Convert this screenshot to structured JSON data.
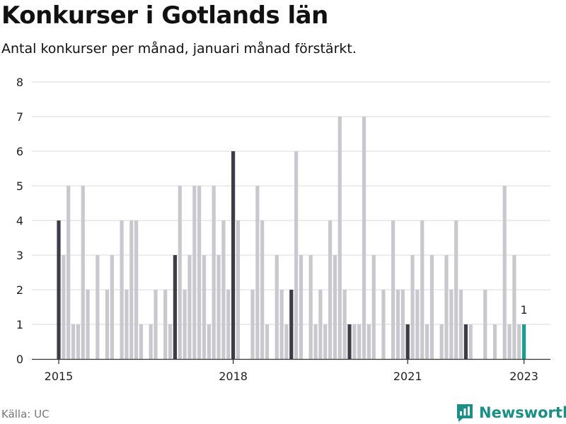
{
  "title": "Konkurser i Gotlands län",
  "subtitle": "Antal konkurser per månad, januari månad förstärkt.",
  "source": "Källa: UC",
  "brand": {
    "name": "Newsworthy",
    "icon": "newsworthy-logo-icon"
  },
  "colors": {
    "background": "#ffffff",
    "january": "#3d3c47",
    "other": "#c9c8cf",
    "latest": "#1a9c8e",
    "grid": "#d9d9d9",
    "brand": "#1a8f86"
  },
  "chart_data": {
    "type": "bar",
    "title": "Konkurser i Gotlands län",
    "subtitle": "Antal konkurser per månad, januari månad förstärkt.",
    "xlabel": "",
    "ylabel": "",
    "ylim": [
      0,
      8
    ],
    "yticks": [
      0,
      1,
      2,
      3,
      4,
      5,
      6,
      7,
      8
    ],
    "xtick_labels": [
      {
        "label": "2015",
        "index": 0
      },
      {
        "label": "2018",
        "index": 36
      },
      {
        "label": "2021",
        "index": 72
      },
      {
        "label": "2023",
        "index": 96
      }
    ],
    "start": "2015-01",
    "values": [
      4,
      3,
      5,
      1,
      1,
      5,
      2,
      0,
      3,
      0,
      2,
      3,
      0,
      4,
      2,
      4,
      4,
      1,
      0,
      1,
      2,
      0,
      2,
      1,
      3,
      5,
      2,
      3,
      5,
      5,
      3,
      1,
      5,
      3,
      4,
      2,
      6,
      4,
      0,
      0,
      2,
      5,
      4,
      1,
      0,
      3,
      2,
      1,
      2,
      6,
      3,
      0,
      3,
      1,
      2,
      1,
      4,
      3,
      7,
      2,
      1,
      1,
      1,
      7,
      1,
      3,
      0,
      2,
      0,
      4,
      2,
      2,
      1,
      3,
      2,
      4,
      1,
      3,
      0,
      1,
      3,
      2,
      4,
      2,
      1,
      1,
      0,
      0,
      2,
      0,
      1,
      0,
      5,
      1,
      3,
      1,
      1
    ],
    "highlight": "january",
    "latest_label": "1"
  }
}
